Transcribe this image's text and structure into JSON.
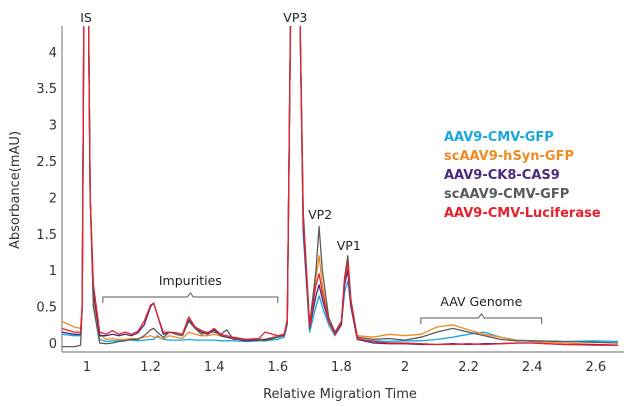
{
  "chart_data": {
    "type": "line",
    "title": "",
    "xlabel": "Relative Migration Time",
    "ylabel": "Absorbance(mAU)",
    "xlim": [
      0.92,
      2.67
    ],
    "ylim": [
      -0.1,
      4.37
    ],
    "xticks": [
      1,
      1.2,
      1.4,
      1.6,
      1.8,
      2,
      2.2,
      2.4,
      2.6
    ],
    "xtick_labels": [
      "1",
      "1.2",
      "1.4",
      "1.6",
      "1.8",
      "2",
      "2.2",
      "2.4",
      "2.6"
    ],
    "yticks": [
      0,
      0.5,
      1,
      1.5,
      2,
      2.5,
      3,
      3.5,
      4
    ],
    "ytick_labels": [
      "0",
      "0.5",
      "1",
      "1.5",
      "2",
      "2.5",
      "3",
      "3.5",
      "4"
    ],
    "grid": false,
    "legend_position": "right",
    "x": [
      0.92,
      0.96,
      0.98,
      0.985,
      0.99,
      1.0,
      1.005,
      1.01,
      1.02,
      1.04,
      1.06,
      1.08,
      1.1,
      1.12,
      1.14,
      1.16,
      1.18,
      1.2,
      1.21,
      1.22,
      1.24,
      1.26,
      1.28,
      1.3,
      1.32,
      1.34,
      1.36,
      1.38,
      1.4,
      1.42,
      1.44,
      1.46,
      1.5,
      1.54,
      1.56,
      1.6,
      1.62,
      1.63,
      1.64,
      1.66,
      1.67,
      1.68,
      1.7,
      1.72,
      1.73,
      1.74,
      1.76,
      1.78,
      1.8,
      1.81,
      1.82,
      1.83,
      1.85,
      1.9,
      1.95,
      2.0,
      2.05,
      2.1,
      2.15,
      2.2,
      2.25,
      2.3,
      2.35,
      2.4,
      2.5,
      2.6,
      2.67
    ],
    "series": [
      {
        "name": "AAV9-CMV-GFP",
        "color": "#1aa7e0",
        "values": [
          0.12,
          0.1,
          0.1,
          0.5,
          4.4,
          4.4,
          4.4,
          2.0,
          0.5,
          0.05,
          0.02,
          0.03,
          0.03,
          0.04,
          0.04,
          0.03,
          0.04,
          0.05,
          0.05,
          0.1,
          0.05,
          0.04,
          0.04,
          0.04,
          0.05,
          0.04,
          0.04,
          0.04,
          0.04,
          0.03,
          0.03,
          0.03,
          0.02,
          0.03,
          0.03,
          0.05,
          0.08,
          0.25,
          4.4,
          4.4,
          4.4,
          1.5,
          0.15,
          0.5,
          0.65,
          0.5,
          0.25,
          0.1,
          0.25,
          0.7,
          0.85,
          0.5,
          0.05,
          0.03,
          0.02,
          0.03,
          0.03,
          0.05,
          0.08,
          0.12,
          0.15,
          0.08,
          0.04,
          0.03,
          0.02,
          0.03,
          0.02
        ]
      },
      {
        "name": "scAAV9-hSyn-GFP",
        "color": "#f08a24",
        "values": [
          0.3,
          0.22,
          0.2,
          0.5,
          4.4,
          4.4,
          4.4,
          2.0,
          0.6,
          0.12,
          0.05,
          0.06,
          0.05,
          0.05,
          0.06,
          0.06,
          0.08,
          0.1,
          0.08,
          0.08,
          0.06,
          0.1,
          0.08,
          0.06,
          0.15,
          0.12,
          0.1,
          0.1,
          0.12,
          0.1,
          0.08,
          0.06,
          0.05,
          0.06,
          0.05,
          0.1,
          0.12,
          0.35,
          4.4,
          4.4,
          4.4,
          1.8,
          0.25,
          0.9,
          1.2,
          0.8,
          0.3,
          0.15,
          0.25,
          0.85,
          1.05,
          0.55,
          0.1,
          0.08,
          0.12,
          0.1,
          0.12,
          0.22,
          0.25,
          0.18,
          0.12,
          0.08,
          0.04,
          0.02,
          0.0,
          -0.02,
          -0.03
        ]
      },
      {
        "name": "AAV9-CK8-CAS9",
        "color": "#4b2a7b",
        "values": [
          0.15,
          0.12,
          0.12,
          0.5,
          4.4,
          4.4,
          4.4,
          2.0,
          0.7,
          0.1,
          0.1,
          0.12,
          0.1,
          0.12,
          0.1,
          0.14,
          0.25,
          0.5,
          0.55,
          0.4,
          0.12,
          0.15,
          0.12,
          0.1,
          0.32,
          0.2,
          0.15,
          0.12,
          0.18,
          0.1,
          0.08,
          0.06,
          0.03,
          0.04,
          0.05,
          0.08,
          0.12,
          0.3,
          4.4,
          4.4,
          4.4,
          1.6,
          0.2,
          0.65,
          0.8,
          0.6,
          0.3,
          0.12,
          0.25,
          0.8,
          1.0,
          0.5,
          0.05,
          0.0,
          -0.01,
          -0.01,
          -0.02,
          -0.02,
          -0.01,
          -0.02,
          -0.01,
          -0.01,
          0.0,
          0.0,
          -0.02,
          -0.02,
          -0.03
        ]
      },
      {
        "name": "scAAV9-CMV-GFP",
        "color": "#5a5a5a",
        "values": [
          -0.05,
          -0.05,
          -0.03,
          0.5,
          4.4,
          4.4,
          4.4,
          2.0,
          0.5,
          0.0,
          -0.01,
          0.0,
          0.02,
          0.03,
          0.05,
          0.05,
          0.1,
          0.18,
          0.2,
          0.15,
          0.08,
          0.15,
          0.12,
          0.1,
          0.3,
          0.2,
          0.12,
          0.15,
          0.15,
          0.12,
          0.18,
          0.05,
          0.05,
          0.05,
          0.03,
          0.08,
          0.1,
          0.3,
          4.4,
          4.4,
          4.4,
          1.8,
          0.25,
          1.0,
          1.6,
          1.0,
          0.35,
          0.15,
          0.3,
          0.9,
          1.2,
          0.6,
          0.08,
          0.05,
          0.06,
          0.04,
          0.08,
          0.15,
          0.2,
          0.15,
          0.1,
          0.05,
          0.03,
          0.03,
          0.02,
          0.01,
          0.0
        ]
      },
      {
        "name": "AAV9-CMV-Luciferase",
        "color": "#e8202f",
        "values": [
          0.2,
          0.15,
          0.15,
          0.5,
          4.4,
          4.4,
          4.4,
          2.0,
          0.8,
          0.15,
          0.12,
          0.17,
          0.12,
          0.15,
          0.12,
          0.16,
          0.3,
          0.52,
          0.55,
          0.4,
          0.15,
          0.15,
          0.14,
          0.12,
          0.36,
          0.22,
          0.17,
          0.14,
          0.2,
          0.12,
          0.1,
          0.08,
          0.05,
          0.06,
          0.15,
          0.1,
          0.12,
          0.3,
          4.4,
          4.4,
          4.4,
          1.7,
          0.22,
          0.8,
          0.95,
          0.7,
          0.3,
          0.12,
          0.28,
          0.9,
          1.1,
          0.55,
          0.06,
          0.02,
          0.0,
          0.0,
          -0.01,
          -0.02,
          -0.02,
          -0.01,
          -0.02,
          -0.01,
          0.0,
          0.0,
          -0.02,
          -0.03,
          -0.03
        ]
      }
    ],
    "annotations": [
      {
        "text": "IS",
        "x": 1.0
      },
      {
        "text": "VP3",
        "x": 1.655
      },
      {
        "text": "VP2",
        "x": 1.73
      },
      {
        "text": "VP1",
        "x": 1.82
      },
      {
        "text": "Impurities",
        "x_start": 1.05,
        "x_end": 1.6
      },
      {
        "text": "AAV Genome",
        "x_start": 2.05,
        "x_end": 2.43
      }
    ]
  }
}
